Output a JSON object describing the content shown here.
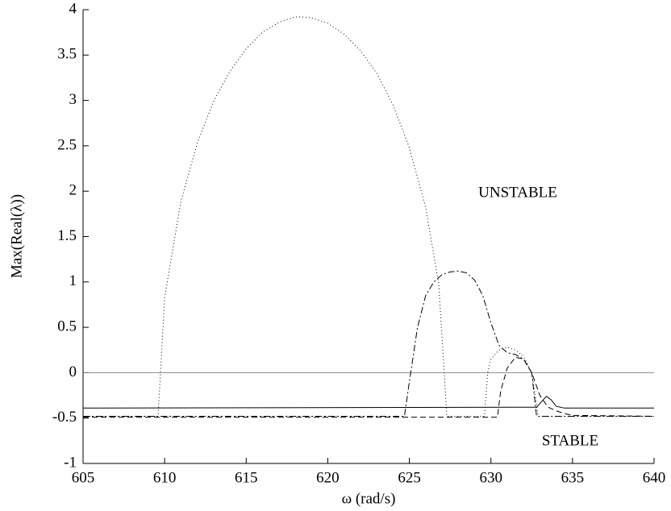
{
  "chart_data": {
    "type": "line",
    "x_label": "ω (rad/s)",
    "y_label": "Max(Real(λ))",
    "annotations": [
      "UNSTABLE",
      "STABLE"
    ],
    "xlim": [
      605,
      640
    ],
    "ylim": [
      -1,
      4
    ],
    "xticks": [
      605,
      610,
      615,
      620,
      625,
      630,
      635,
      640
    ],
    "yticks": [
      -1,
      -0.5,
      0,
      0.5,
      1,
      1.5,
      2,
      2.5,
      3,
      3.5,
      4
    ],
    "hline": 0,
    "hline_color": "#888888",
    "series": [
      {
        "color": "#000000",
        "style": "dotted",
        "x": [
          605,
          609.6,
          610,
          611,
          612,
          613,
          614,
          615,
          616,
          617,
          618,
          618.4,
          619,
          620,
          621,
          622,
          623,
          624,
          625,
          626,
          626.8,
          627.3,
          629.6,
          629.8,
          630,
          630.5,
          631,
          631.5,
          632,
          632.5,
          632.9,
          640
        ],
        "values": [
          -0.48,
          -0.48,
          0.83,
          1.89,
          2.53,
          2.99,
          3.32,
          3.57,
          3.75,
          3.86,
          3.92,
          3.92,
          3.91,
          3.85,
          3.73,
          3.55,
          3.3,
          2.95,
          2.48,
          1.82,
          0.98,
          -0.48,
          -0.48,
          0.0,
          0.15,
          0.25,
          0.28,
          0.25,
          0.18,
          0.0,
          -0.48,
          -0.48
        ]
      },
      {
        "color": "#000000",
        "style": "dashdot",
        "x": [
          605,
          624.7,
          625,
          625.5,
          626,
          626.5,
          627,
          627.5,
          628,
          628.5,
          629,
          629.5,
          630,
          630.5,
          631,
          631.5,
          632,
          632.5,
          632.8,
          640
        ],
        "values": [
          -0.48,
          -0.48,
          -0.1,
          0.5,
          0.85,
          1.0,
          1.08,
          1.11,
          1.12,
          1.1,
          1.02,
          0.85,
          0.55,
          0.3,
          0.22,
          0.2,
          0.15,
          0.0,
          -0.48,
          -0.48
        ]
      },
      {
        "color": "#000000",
        "style": "dashed",
        "x": [
          605,
          630.4,
          630.6,
          631,
          631.5,
          632,
          632.5,
          633,
          633.5,
          634,
          634.5,
          635,
          640
        ],
        "values": [
          -0.49,
          -0.49,
          -0.2,
          0.05,
          0.17,
          0.15,
          0.0,
          -0.25,
          -0.38,
          -0.42,
          -0.45,
          -0.47,
          -0.48
        ]
      },
      {
        "color": "#000000",
        "style": "solid",
        "x": [
          605,
          632.8,
          633.2,
          633.4,
          633.7,
          634,
          634.5,
          640
        ],
        "values": [
          -0.39,
          -0.38,
          -0.3,
          -0.26,
          -0.3,
          -0.37,
          -0.39,
          -0.39
        ]
      }
    ]
  }
}
